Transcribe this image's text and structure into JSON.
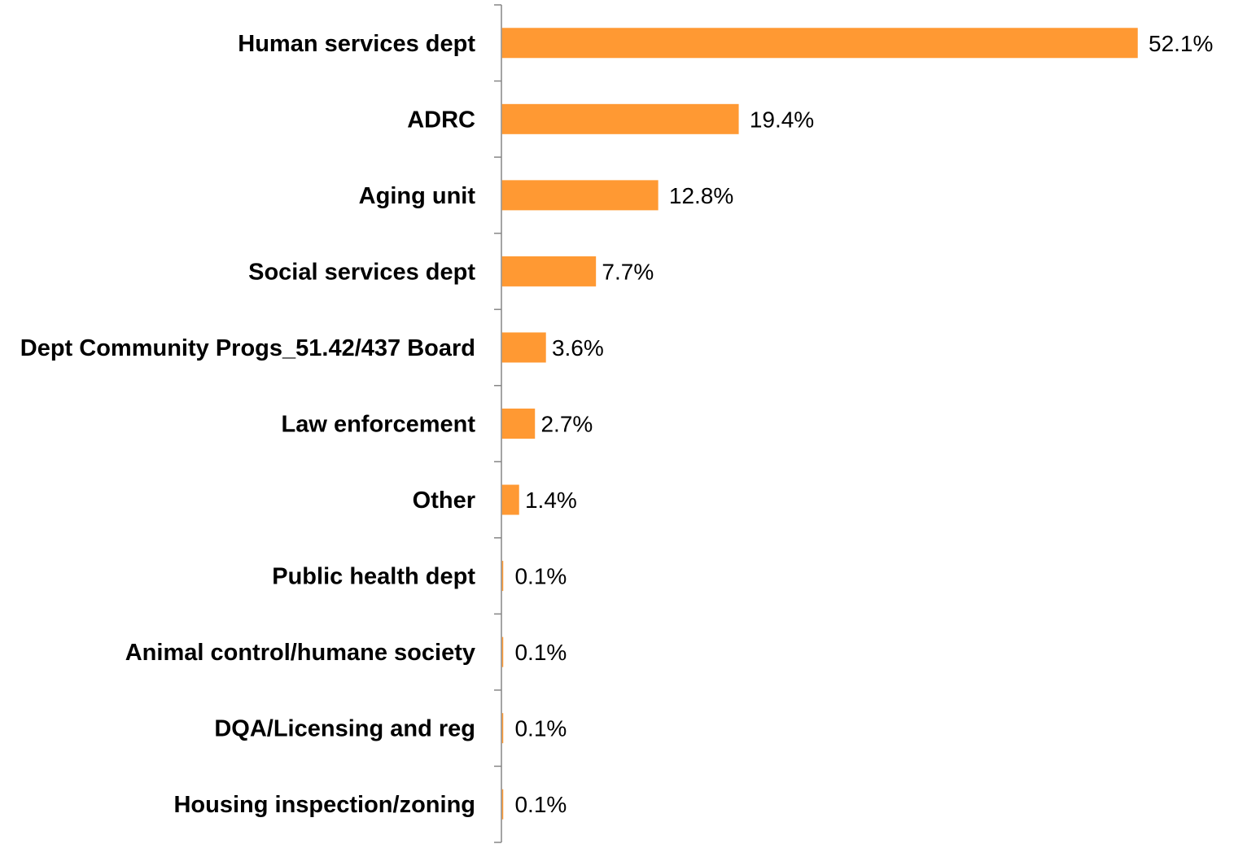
{
  "chart_data": {
    "type": "bar",
    "orientation": "horizontal",
    "categories": [
      "Human services dept",
      "ADRC",
      "Aging unit",
      "Social services dept",
      "Dept Community Progs_51.42/437 Board",
      "Law enforcement",
      "Other ",
      "Public health dept",
      "Animal control/humane society",
      "DQA/Licensing and reg",
      "Housing inspection/zoning"
    ],
    "values": [
      52.1,
      19.4,
      12.8,
      7.7,
      3.6,
      2.7,
      1.4,
      0.1,
      0.1,
      0.1,
      0.1
    ],
    "value_labels": [
      "52.1%",
      "19.4%",
      "12.8%",
      "7.7%",
      "3.6%",
      "2.7%",
      "1.4%",
      "0.1%",
      "0.1%",
      "0.1%",
      "0.1%"
    ],
    "unit": "%",
    "xlim": [
      0,
      55
    ],
    "bar_color": "#FF9933",
    "axis_color": "#868686",
    "grid": false,
    "legend": "none"
  }
}
